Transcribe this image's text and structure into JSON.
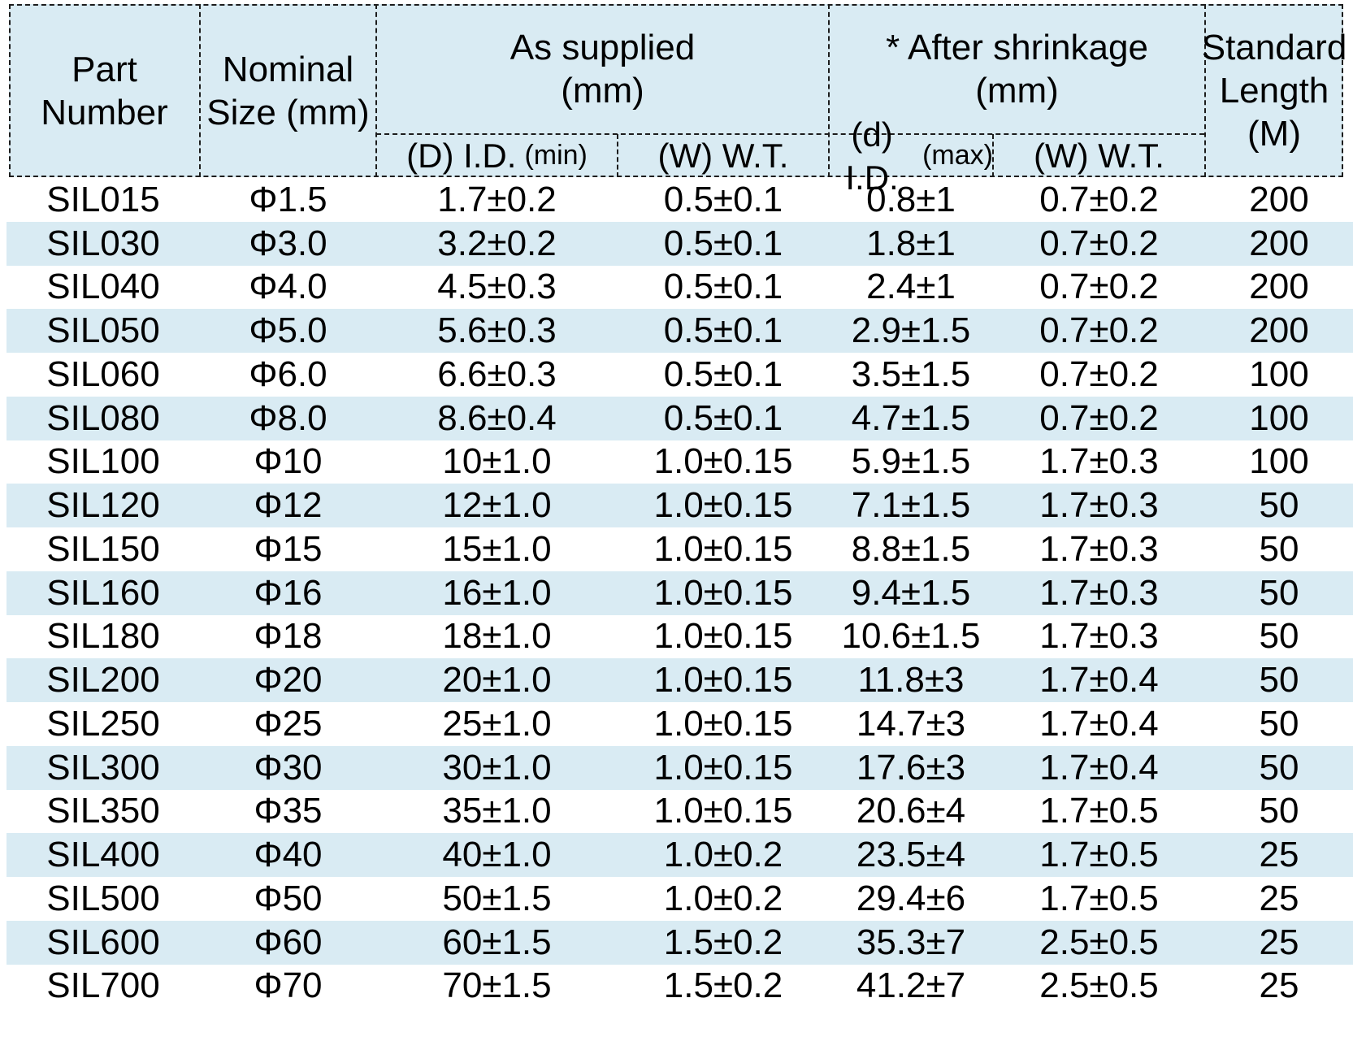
{
  "colors": {
    "stripe_blue": "#d9ebf3",
    "border": "#1c1c1c",
    "text": "#000000",
    "page_bg": "#ffffff"
  },
  "table": {
    "header": {
      "part_number": "Part Number",
      "nominal_size_line1": "Nominal",
      "nominal_size_line2": "Size (mm)",
      "as_supplied_line1": "As supplied",
      "as_supplied_line2": "(mm)",
      "after_shrinkage_line1": "* After shrinkage",
      "after_shrinkage_line2": "(mm)",
      "standard_length_line1": "Standard",
      "standard_length_line2": "Length",
      "standard_length_line3": "(M)",
      "supplied_id_main": "(D) I.D.",
      "supplied_id_qual": "(min)",
      "supplied_wt": "(W) W.T.",
      "shrink_id_main": "(d) I.D.",
      "shrink_id_qual": "(max)",
      "shrink_wt": "(W) W.T."
    },
    "column_ids": [
      "part-number",
      "nominal-size",
      "supplied-id",
      "supplied-wt",
      "shrink-id",
      "shrink-wt",
      "standard-length"
    ],
    "rows": [
      [
        "SIL015",
        "Φ1.5",
        "1.7±0.2",
        "0.5±0.1",
        "0.8±1",
        "0.7±0.2",
        "200"
      ],
      [
        "SIL030",
        "Φ3.0",
        "3.2±0.2",
        "0.5±0.1",
        "1.8±1",
        "0.7±0.2",
        "200"
      ],
      [
        "SIL040",
        "Φ4.0",
        "4.5±0.3",
        "0.5±0.1",
        "2.4±1",
        "0.7±0.2",
        "200"
      ],
      [
        "SIL050",
        "Φ5.0",
        "5.6±0.3",
        "0.5±0.1",
        "2.9±1.5",
        "0.7±0.2",
        "200"
      ],
      [
        "SIL060",
        "Φ6.0",
        "6.6±0.3",
        "0.5±0.1",
        "3.5±1.5",
        "0.7±0.2",
        "100"
      ],
      [
        "SIL080",
        "Φ8.0",
        "8.6±0.4",
        "0.5±0.1",
        "4.7±1.5",
        "0.7±0.2",
        "100"
      ],
      [
        "SIL100",
        "Φ10",
        "10±1.0",
        "1.0±0.15",
        "5.9±1.5",
        "1.7±0.3",
        "100"
      ],
      [
        "SIL120",
        "Φ12",
        "12±1.0",
        "1.0±0.15",
        "7.1±1.5",
        "1.7±0.3",
        "50"
      ],
      [
        "SIL150",
        "Φ15",
        "15±1.0",
        "1.0±0.15",
        "8.8±1.5",
        "1.7±0.3",
        "50"
      ],
      [
        "SIL160",
        "Φ16",
        "16±1.0",
        "1.0±0.15",
        "9.4±1.5",
        "1.7±0.3",
        "50"
      ],
      [
        "SIL180",
        "Φ18",
        "18±1.0",
        "1.0±0.15",
        "10.6±1.5",
        "1.7±0.3",
        "50"
      ],
      [
        "SIL200",
        "Φ20",
        "20±1.0",
        "1.0±0.15",
        "11.8±3",
        "1.7±0.4",
        "50"
      ],
      [
        "SIL250",
        "Φ25",
        "25±1.0",
        "1.0±0.15",
        "14.7±3",
        "1.7±0.4",
        "50"
      ],
      [
        "SIL300",
        "Φ30",
        "30±1.0",
        "1.0±0.15",
        "17.6±3",
        "1.7±0.4",
        "50"
      ],
      [
        "SIL350",
        "Φ35",
        "35±1.0",
        "1.0±0.15",
        "20.6±4",
        "1.7±0.5",
        "50"
      ],
      [
        "SIL400",
        "Φ40",
        "40±1.0",
        "1.0±0.2",
        "23.5±4",
        "1.7±0.5",
        "25"
      ],
      [
        "SIL500",
        "Φ50",
        "50±1.5",
        "1.0±0.2",
        "29.4±6",
        "1.7±0.5",
        "25"
      ],
      [
        "SIL600",
        "Φ60",
        "60±1.5",
        "1.5±0.2",
        "35.3±7",
        "2.5±0.5",
        "25"
      ],
      [
        "SIL700",
        "Φ70",
        "70±1.5",
        "1.5±0.2",
        "41.2±7",
        "2.5±0.5",
        "25"
      ]
    ]
  }
}
